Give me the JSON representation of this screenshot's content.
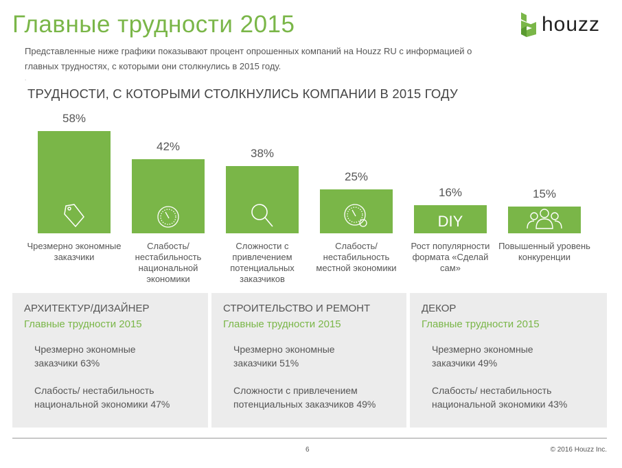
{
  "header": {
    "title": "Главные трудности 2015",
    "logo_text": "houzz",
    "intro": "Представленные ниже графики показывают процент опрошенных компаний на Houzz RU с информацией о главных трудностях, с которыми они столкнулись в 2015 году.",
    "dot": "."
  },
  "chart_data": {
    "type": "bar",
    "title": "ТРУДНОСТИ, С КОТОРЫМИ СТОЛКНУЛИСЬ КОМПАНИИ В 2015 ГОДУ",
    "categories": [
      "Чрезмерно экономные заказчики",
      "Слабость/ нестабильность национальной экономики",
      "Сложности с привлечением потенциальных заказчиков",
      "Слабость/ нестабильность местной экономики",
      "Рост популярности формата «Сделай сам»",
      "Повышенный уровень конкуренции"
    ],
    "values": [
      58,
      42,
      38,
      25,
      16,
      15
    ],
    "value_labels": [
      "58%",
      "42%",
      "38%",
      "25%",
      "16%",
      "15%"
    ],
    "icons": [
      "tag-icon",
      "gauge-icon",
      "magnifier-icon",
      "gauge-pin-icon",
      "diy-icon",
      "people-icon"
    ],
    "icon_text": {
      "diy": "DIY"
    },
    "unit": "%",
    "ylim": [
      0,
      60
    ],
    "grid": false,
    "bar_color": "#7ab648"
  },
  "panels": [
    {
      "heading": "АРХИТЕКТУР/ДИЗАЙНЕР",
      "sub": "Главные трудности 2015",
      "items": [
        "Чрезмерно экономные заказчики 63%",
        "Слабость/ нестабильность национальной экономики 47%"
      ]
    },
    {
      "heading": "СТРОИТЕЛЬСТВО И РЕМОНТ",
      "sub": "Главные трудности 2015",
      "items": [
        "Чрезмерно экономные заказчики 51%",
        "Сложности с привлечением потенциальных заказчиков 49%"
      ]
    },
    {
      "heading": "ДЕКОР",
      "sub": "Главные трудности 2015",
      "items": [
        "Чрезмерно экономные заказчики 49%",
        "Слабость/ нестабильность национальной экономики 43%"
      ]
    }
  ],
  "footer": {
    "page": "6",
    "copyright": "© 2016 Houzz Inc."
  },
  "colors": {
    "accent": "#7ab648",
    "panel": "#ececec"
  }
}
